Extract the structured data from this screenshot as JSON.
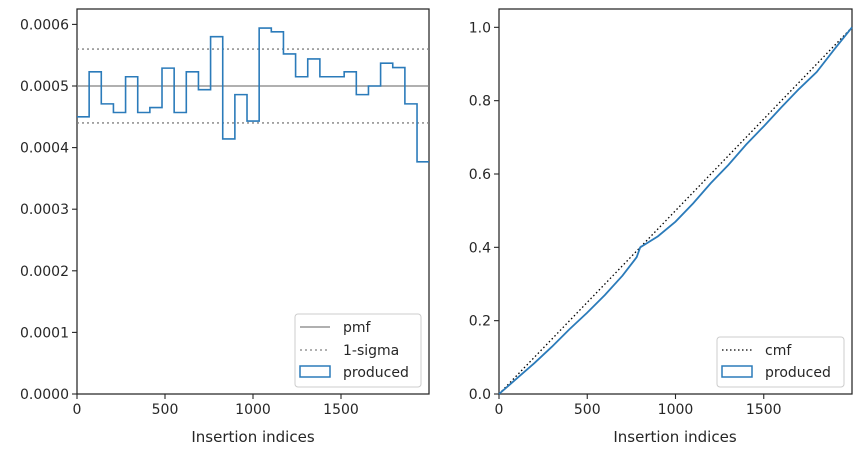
{
  "colors": {
    "produced": "#2b7bba",
    "pmf": "#808080",
    "sigma": "#808080",
    "cmf": "#000000",
    "axis": "#262626"
  },
  "chart_data": [
    {
      "type": "line",
      "xlabel": "Insertion indices",
      "ylabel": "",
      "xlim": [
        0,
        2000
      ],
      "ylim": [
        0,
        0.000625
      ],
      "xticks": [
        0,
        500,
        1000,
        1500
      ],
      "xtick_labels": [
        "0",
        "500",
        "1000",
        "1500"
      ],
      "yticks": [
        0,
        0.0001,
        0.0002,
        0.0003,
        0.0004,
        0.0005,
        0.0006
      ],
      "ytick_labels": [
        "0.0000",
        "0.0001",
        "0.0002",
        "0.0003",
        "0.0004",
        "0.0005",
        "0.0006"
      ],
      "grid": false,
      "legend_position": "lower-right",
      "legend": [
        "pmf",
        "1-sigma",
        "produced"
      ],
      "pmf": 0.0005,
      "sigma_band": [
        0.00044,
        0.00056
      ],
      "produced_bin_edges": [
        0,
        69,
        138,
        207,
        276,
        345,
        414,
        483,
        552,
        621,
        690,
        759,
        828,
        897,
        966,
        1035,
        1104,
        1173,
        1242,
        1311,
        1380,
        1449,
        1518,
        1587,
        1656,
        1725,
        1794,
        1863,
        1932,
        2000
      ],
      "produced_values": [
        0.00045,
        0.000523,
        0.000471,
        0.000457,
        0.000515,
        0.000457,
        0.000465,
        0.000529,
        0.000457,
        0.000523,
        0.000494,
        0.00058,
        0.000414,
        0.000486,
        0.000443,
        0.000594,
        0.000588,
        0.000552,
        0.000515,
        0.000544,
        0.000515,
        0.000515,
        0.000523,
        0.000486,
        0.0005,
        0.000537,
        0.00053,
        0.000471,
        0.000377
      ]
    },
    {
      "type": "line",
      "xlabel": "Insertion indices",
      "ylabel": "",
      "xlim": [
        0,
        2000
      ],
      "ylim": [
        0,
        1.05
      ],
      "xticks": [
        0,
        500,
        1000,
        1500
      ],
      "xtick_labels": [
        "0",
        "500",
        "1000",
        "1500"
      ],
      "yticks": [
        0,
        0.2,
        0.4,
        0.6,
        0.8,
        1.0
      ],
      "ytick_labels": [
        "0.0",
        "0.2",
        "0.4",
        "0.6",
        "0.8",
        "1.0"
      ],
      "grid": false,
      "legend_position": "lower-right",
      "legend": [
        "cmf",
        "produced"
      ],
      "cmf": {
        "x": [
          0,
          2000
        ],
        "y": [
          0,
          1.0
        ]
      },
      "produced_cdf": {
        "x": [
          0,
          100,
          200,
          300,
          400,
          500,
          600,
          700,
          780,
          800,
          900,
          1000,
          1100,
          1200,
          1300,
          1400,
          1500,
          1600,
          1700,
          1800,
          1900,
          2000
        ],
        "y": [
          0,
          0.042,
          0.084,
          0.129,
          0.177,
          0.222,
          0.27,
          0.323,
          0.373,
          0.4,
          0.43,
          0.47,
          0.52,
          0.575,
          0.625,
          0.68,
          0.73,
          0.782,
          0.832,
          0.878,
          0.94,
          1.0
        ]
      }
    }
  ]
}
